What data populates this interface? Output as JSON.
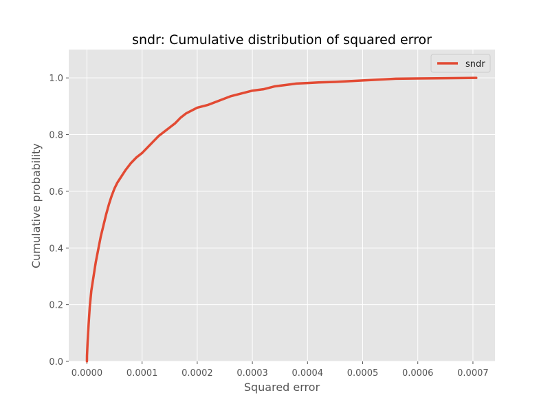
{
  "chart_data": {
    "type": "line",
    "title": "sndr: Cumulative distribution of squared error",
    "xlabel": "Squared error",
    "ylabel": "Cumulative probability",
    "xlim": [
      -3.3e-05,
      0.00074
    ],
    "ylim": [
      0.0,
      1.1
    ],
    "x_ticks": [
      0.0,
      0.0001,
      0.0002,
      0.0003,
      0.0004,
      0.0005,
      0.0006,
      0.0007
    ],
    "x_tick_labels": [
      "0.0000",
      "0.0001",
      "0.0002",
      "0.0003",
      "0.0004",
      "0.0005",
      "0.0006",
      "0.0007"
    ],
    "y_ticks": [
      0.0,
      0.2,
      0.4,
      0.6,
      0.8,
      1.0
    ],
    "y_tick_labels": [
      "0.0",
      "0.2",
      "0.4",
      "0.6",
      "0.8",
      "1.0"
    ],
    "grid": true,
    "legend_position": "top-right",
    "series": [
      {
        "name": "sndr",
        "color": "#E24A33",
        "x": [
          0,
          1e-07,
          1e-06,
          3e-06,
          5e-06,
          8e-06,
          1.2e-05,
          1.6e-05,
          2e-05,
          2.5e-05,
          3e-05,
          3.5e-05,
          4e-05,
          4.5e-05,
          5e-05,
          5.5e-05,
          6e-05,
          7e-05,
          8e-05,
          9e-05,
          0.0001,
          0.00011,
          0.00012,
          0.00013,
          0.00014,
          0.00015,
          0.00016,
          0.00017,
          0.00018,
          0.0002,
          0.00022,
          0.00024,
          0.00026,
          0.00028,
          0.0003,
          0.00032,
          0.00034,
          0.00036,
          0.00038,
          0.0004,
          0.00042,
          0.00045,
          0.00048,
          0.0005,
          0.00053,
          0.00056,
          0.0006,
          0.00065,
          0.000706
        ],
        "values": [
          0.0,
          0.02,
          0.06,
          0.13,
          0.19,
          0.25,
          0.3,
          0.35,
          0.39,
          0.44,
          0.48,
          0.52,
          0.555,
          0.585,
          0.61,
          0.63,
          0.645,
          0.675,
          0.7,
          0.72,
          0.735,
          0.755,
          0.775,
          0.795,
          0.81,
          0.825,
          0.84,
          0.86,
          0.875,
          0.895,
          0.905,
          0.92,
          0.935,
          0.945,
          0.955,
          0.96,
          0.97,
          0.975,
          0.98,
          0.982,
          0.984,
          0.986,
          0.989,
          0.991,
          0.994,
          0.997,
          0.998,
          0.999,
          1.0
        ]
      }
    ]
  }
}
